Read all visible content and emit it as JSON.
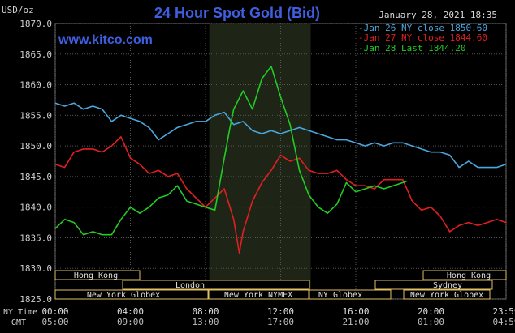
{
  "chart_data": {
    "type": "line",
    "title": "24 Hour Spot Gold (Bid)",
    "watermark": "www.kitco.com",
    "timestamp": "January 28, 2021 18:35",
    "ylabel": "USD/oz",
    "ylim": [
      1825.0,
      1870.0
    ],
    "yticks": [
      "1870.0",
      "1865.0",
      "1860.0",
      "1855.0",
      "1850.0",
      "1845.0",
      "1840.0",
      "1835.0",
      "1830.0",
      "1825.0"
    ],
    "grid": true,
    "legend_position": "top-right",
    "x_axis": {
      "ny_label": "NY Time",
      "gmt_label": "GMT",
      "ny_ticks": [
        "00:00",
        "04:00",
        "08:00",
        "12:00",
        "16:00",
        "20:00",
        "23:59"
      ],
      "gmt_ticks": [
        "05:00",
        "09:00",
        "13:00",
        "17:00",
        "21:00",
        "01:00",
        "04:59"
      ]
    },
    "highlight_band_hours": [
      8.2,
      13.6
    ],
    "series": [
      {
        "name": "Jan 26 NY close 1850.60",
        "color": "#4aa7df",
        "points": [
          [
            0,
            1857
          ],
          [
            0.5,
            1856.5
          ],
          [
            1,
            1857
          ],
          [
            1.5,
            1856
          ],
          [
            2,
            1856.5
          ],
          [
            2.5,
            1856
          ],
          [
            3,
            1854
          ],
          [
            3.5,
            1855
          ],
          [
            4,
            1854.5
          ],
          [
            4.5,
            1854
          ],
          [
            5,
            1853
          ],
          [
            5.5,
            1851
          ],
          [
            6,
            1852
          ],
          [
            6.5,
            1853
          ],
          [
            7,
            1853.5
          ],
          [
            7.5,
            1854
          ],
          [
            8,
            1854
          ],
          [
            8.5,
            1855
          ],
          [
            9,
            1855.5
          ],
          [
            9.5,
            1853.5
          ],
          [
            10,
            1854
          ],
          [
            10.5,
            1852.5
          ],
          [
            11,
            1852
          ],
          [
            11.5,
            1852.5
          ],
          [
            12,
            1852
          ],
          [
            12.5,
            1852.5
          ],
          [
            13,
            1853
          ],
          [
            13.5,
            1852.5
          ],
          [
            14,
            1852
          ],
          [
            14.5,
            1851.5
          ],
          [
            15,
            1851
          ],
          [
            15.5,
            1851
          ],
          [
            16,
            1850.5
          ],
          [
            16.5,
            1850
          ],
          [
            17,
            1850.5
          ],
          [
            17.5,
            1850
          ],
          [
            18,
            1850.5
          ],
          [
            18.5,
            1850.5
          ],
          [
            19,
            1850
          ],
          [
            19.5,
            1849.5
          ],
          [
            20,
            1849
          ],
          [
            20.5,
            1849
          ],
          [
            21,
            1848.5
          ],
          [
            21.5,
            1846.5
          ],
          [
            22,
            1847.5
          ],
          [
            22.5,
            1846.5
          ],
          [
            23,
            1846.5
          ],
          [
            23.5,
            1846.5
          ],
          [
            24,
            1847
          ]
        ]
      },
      {
        "name": "Jan 27 NY close 1844.60",
        "color": "#e02020",
        "points": [
          [
            0,
            1847
          ],
          [
            0.5,
            1846.5
          ],
          [
            1,
            1849
          ],
          [
            1.5,
            1849.5
          ],
          [
            2,
            1849.5
          ],
          [
            2.5,
            1849
          ],
          [
            3,
            1850
          ],
          [
            3.5,
            1851.5
          ],
          [
            4,
            1848
          ],
          [
            4.5,
            1847
          ],
          [
            5,
            1845.5
          ],
          [
            5.5,
            1846
          ],
          [
            6,
            1845
          ],
          [
            6.5,
            1845.5
          ],
          [
            7,
            1843
          ],
          [
            7.5,
            1841.5
          ],
          [
            8,
            1840
          ],
          [
            8.5,
            1841.5
          ],
          [
            9,
            1843
          ],
          [
            9.5,
            1838
          ],
          [
            9.8,
            1832.5
          ],
          [
            10,
            1836
          ],
          [
            10.5,
            1841
          ],
          [
            11,
            1844
          ],
          [
            11.5,
            1846
          ],
          [
            12,
            1848.5
          ],
          [
            12.5,
            1847.5
          ],
          [
            13,
            1848
          ],
          [
            13.5,
            1846
          ],
          [
            14,
            1845.5
          ],
          [
            14.5,
            1845.5
          ],
          [
            15,
            1846
          ],
          [
            15.5,
            1844.5
          ],
          [
            16,
            1843.5
          ],
          [
            16.5,
            1843.5
          ],
          [
            17,
            1843
          ],
          [
            17.5,
            1844.5
          ],
          [
            18,
            1844.5
          ],
          [
            18.5,
            1844.5
          ],
          [
            19,
            1841
          ],
          [
            19.5,
            1839.5
          ],
          [
            20,
            1840
          ],
          [
            20.5,
            1838.5
          ],
          [
            21,
            1836
          ],
          [
            21.5,
            1837
          ],
          [
            22,
            1837.5
          ],
          [
            22.5,
            1837
          ],
          [
            23,
            1837.5
          ],
          [
            23.5,
            1838
          ],
          [
            24,
            1837.5
          ]
        ]
      },
      {
        "name": "Jan 28 Last 1844.20",
        "color": "#22cc22",
        "points": [
          [
            0,
            1836.5
          ],
          [
            0.5,
            1838
          ],
          [
            1,
            1837.5
          ],
          [
            1.5,
            1835.5
          ],
          [
            2,
            1836
          ],
          [
            2.5,
            1835.5
          ],
          [
            3,
            1835.5
          ],
          [
            3.5,
            1838
          ],
          [
            4,
            1840
          ],
          [
            4.5,
            1839
          ],
          [
            5,
            1840
          ],
          [
            5.5,
            1841.5
          ],
          [
            6,
            1842
          ],
          [
            6.5,
            1843.5
          ],
          [
            7,
            1841
          ],
          [
            7.5,
            1840.5
          ],
          [
            8,
            1840
          ],
          [
            8.5,
            1839.5
          ],
          [
            9,
            1848
          ],
          [
            9.3,
            1853
          ],
          [
            9.5,
            1856
          ],
          [
            10,
            1859
          ],
          [
            10.5,
            1856
          ],
          [
            11,
            1861
          ],
          [
            11.5,
            1863
          ],
          [
            12,
            1858
          ],
          [
            12.5,
            1853.5
          ],
          [
            13,
            1846
          ],
          [
            13.5,
            1842
          ],
          [
            14,
            1840
          ],
          [
            14.5,
            1839
          ],
          [
            15,
            1840.5
          ],
          [
            15.5,
            1844
          ],
          [
            16,
            1842.5
          ],
          [
            16.5,
            1843
          ],
          [
            17,
            1843.5
          ],
          [
            17.5,
            1843
          ],
          [
            18,
            1843.5
          ],
          [
            18.5,
            1844
          ],
          [
            18.7,
            1844.2
          ]
        ]
      }
    ],
    "sessions": {
      "row1": [
        "Hong Kong",
        "Hong Kong"
      ],
      "row2": [
        "London",
        "Sydney"
      ],
      "row3": [
        "New York Globex",
        "New York NYMEX",
        "NY Globex",
        "New York Globex"
      ]
    }
  }
}
